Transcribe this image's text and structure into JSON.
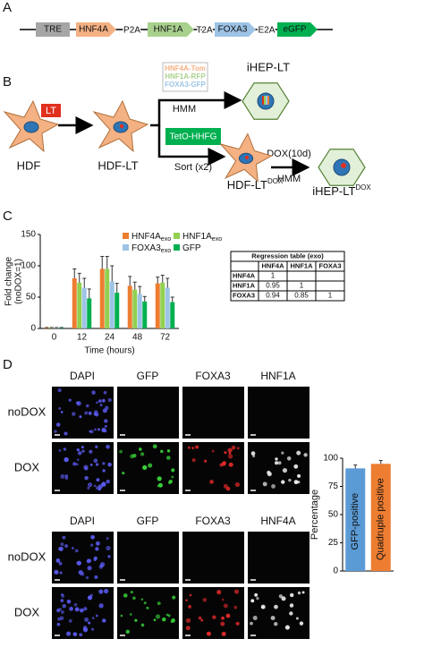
{
  "panel_labels": [
    "A",
    "B",
    "C",
    "D"
  ],
  "construct": {
    "parts": [
      {
        "label": "TRE",
        "color": "#a6a6a6"
      },
      {
        "label": "HNF4A",
        "color": "#f4b183"
      },
      {
        "label": "HNF1A",
        "color": "#a9d18e"
      },
      {
        "label": "FOXA3",
        "color": "#9dc3e6"
      },
      {
        "label": "eGFP",
        "color": "#00b050"
      }
    ],
    "linkers": [
      "P2A",
      "T2A",
      "E2A"
    ]
  },
  "diagram": {
    "lt": "LT",
    "hdf": "HDF",
    "hdf_lt": "HDF-LT",
    "vectors": [
      {
        "label": "HNF4A-Tom",
        "color": "#f4b183"
      },
      {
        "label": "HNF1A-RFP",
        "color": "#a9d18e"
      },
      {
        "label": "FOXA3-GFP",
        "color": "#9dc3e6"
      }
    ],
    "hmm_1": "HMM",
    "ihep_lt": "iHEP-LT",
    "teto": "TetO-HHFG",
    "sort": "Sort (x2)",
    "hdf_lt_dox": "HDF-LT",
    "dox_sup": "DOX",
    "dox_10d": "DOX(10d)",
    "hmm_2": "HMM",
    "ihep_lt_dox": "iHEP-LT",
    "dox_sup_2": "DOX"
  },
  "regression_table": {
    "title": "Regression table (exo)",
    "columns": [
      "HNF4A",
      "HNF1A",
      "FOXA3"
    ],
    "rows": [
      {
        "label": "HNF4A",
        "cells": [
          1
        ]
      },
      {
        "label": "HNF1A",
        "cells": [
          0.95,
          1
        ]
      },
      {
        "label": "FOXA3",
        "cells": [
          0.94,
          0.85,
          1
        ]
      }
    ]
  },
  "microscopy": [
    {
      "columns": [
        "DAPI",
        "GFP",
        "FOXA3",
        "HNF1A"
      ],
      "rows": [
        "noDOX",
        "DOX"
      ]
    },
    {
      "columns": [
        "DAPI",
        "GFP",
        "FOXA3",
        "HNF4A"
      ],
      "rows": [
        "noDOX",
        "DOX"
      ]
    }
  ],
  "chart_data": [
    {
      "type": "bar",
      "x_label": "Time (hours)",
      "y_label": [
        "Fold change",
        "(noDOX=1)"
      ],
      "categories": [
        "0",
        "12",
        "24",
        "48",
        "72"
      ],
      "series": [
        {
          "name": "HNF4A",
          "name_sub": "exo",
          "color": "#ed7d31",
          "values": [
            1,
            80,
            95,
            68,
            72
          ],
          "errors": [
            0.5,
            15,
            20,
            15,
            10
          ]
        },
        {
          "name": "HNF1A",
          "name_sub": "exo",
          "color": "#92d050",
          "values": [
            1,
            73,
            95,
            62,
            73
          ],
          "errors": [
            0.5,
            15,
            20,
            12,
            12
          ]
        },
        {
          "name": "FOXA3",
          "name_sub": "exo",
          "color": "#9dc3e6",
          "values": [
            1,
            65,
            75,
            55,
            65
          ],
          "errors": [
            0.5,
            15,
            25,
            12,
            15
          ]
        },
        {
          "name": "GFP",
          "color": "#00b050",
          "values": [
            1,
            48,
            57,
            43,
            42
          ],
          "errors": [
            0.5,
            15,
            15,
            8,
            8
          ]
        }
      ],
      "ylim": [
        0,
        150
      ],
      "yticks": [
        0,
        50,
        100,
        150
      ]
    },
    {
      "type": "bar",
      "y_label": "Percentage",
      "categories": [
        "GFP-positive",
        "Quadruple positive"
      ],
      "values": [
        91,
        95
      ],
      "errors": [
        3,
        3
      ],
      "colors": [
        "#5b9bd5",
        "#ed7d31"
      ],
      "ylim": [
        0,
        100
      ],
      "yticks": [
        0,
        25,
        50,
        75,
        100
      ]
    }
  ]
}
